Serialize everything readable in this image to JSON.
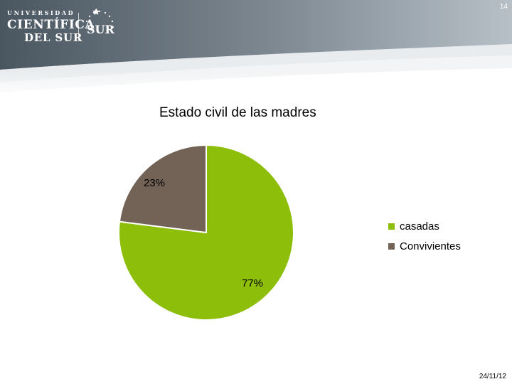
{
  "slide": {
    "number": "14",
    "date": "24/11/12"
  },
  "logo": {
    "line1": "UNIVERSIDAD",
    "line2": "CIENTÍFICA",
    "line3": "DEL SUR",
    "mark_text": "SUR"
  },
  "theme": {
    "header_dark": "#4a5660",
    "header_light": "#9aa5ae",
    "casadas_color": "#8dbe0a",
    "convivientes_color": "#736356"
  },
  "chart_data": {
    "type": "pie",
    "title": "Estado civil de las madres",
    "categories": [
      "casadas",
      "Convivientes"
    ],
    "values": [
      77,
      23
    ],
    "data_labels": [
      "77%",
      "23%"
    ],
    "colors": [
      "#8dbe0a",
      "#736356"
    ],
    "legend_position": "right"
  }
}
